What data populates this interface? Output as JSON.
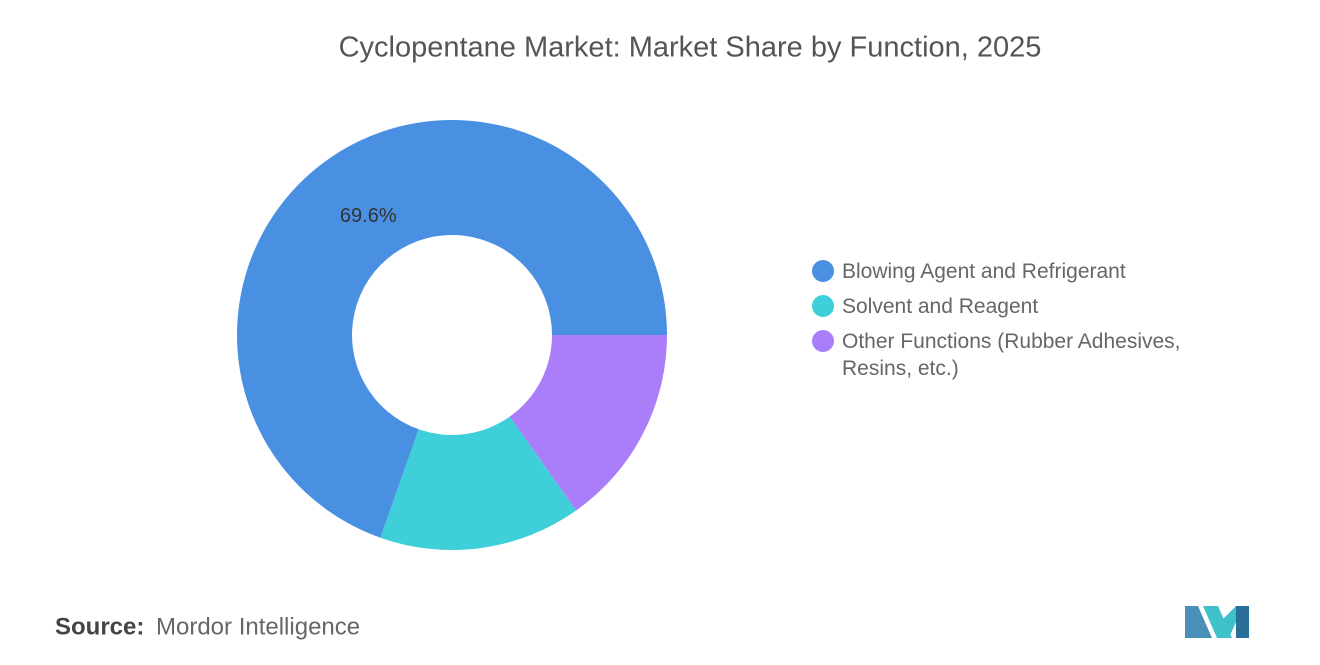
{
  "chart_data": {
    "type": "donut",
    "title": "Cyclopentane Market: Market Share by Function, 2025",
    "categories": [
      "Blowing Agent and Refrigerant",
      "Solvent and Reagent",
      "Other Functions (Rubber Adhesives, Resins, etc.)"
    ],
    "values": [
      69.6,
      15.2,
      15.2
    ],
    "value_labels": [
      "69.6%",
      null,
      null
    ],
    "colors": [
      "#4a90e2",
      "#3ecfd9",
      "#a97ef8"
    ]
  },
  "source_label": "Source:",
  "source": "Mordor Intelligence"
}
